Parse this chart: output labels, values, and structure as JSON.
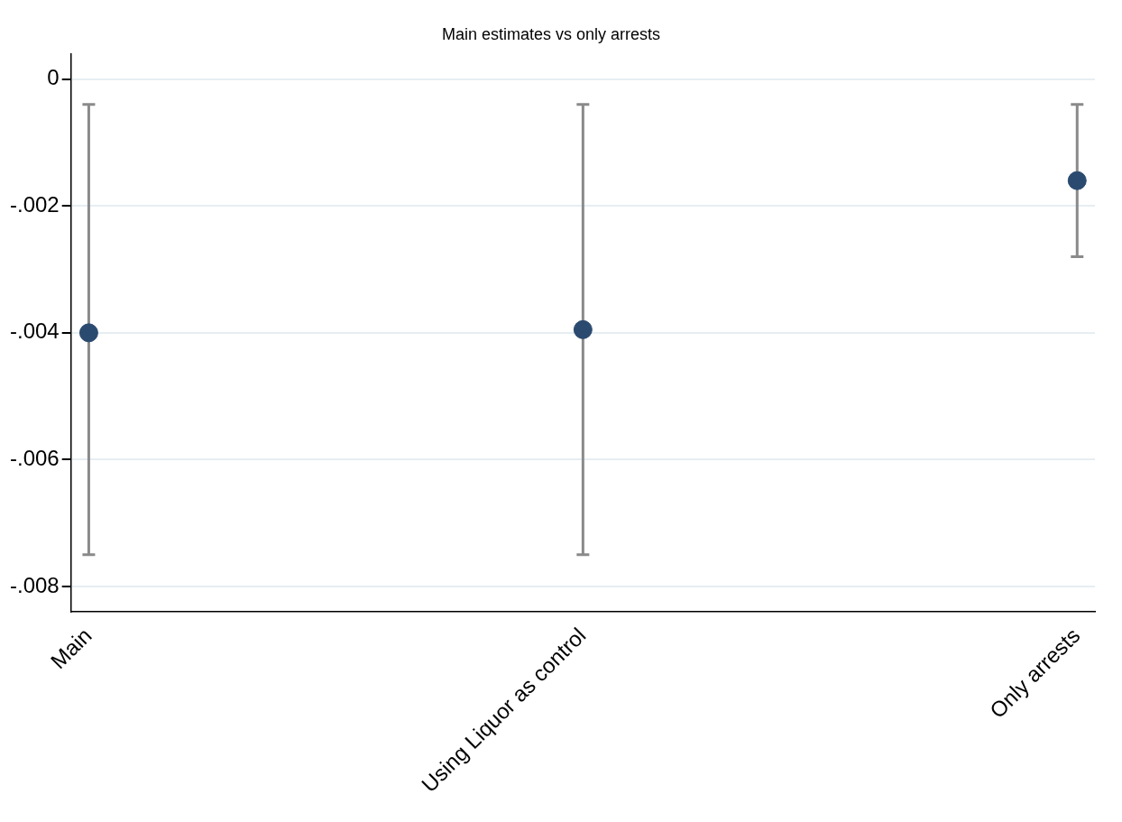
{
  "chart_data": {
    "type": "scatter",
    "title": "Main estimates vs only arrests",
    "categories": [
      "Main",
      "Using Liquor as control",
      "Only arrests"
    ],
    "series": [
      {
        "color": "#2b4a6f",
        "values": [
          -0.004,
          -0.00395,
          -0.0016
        ],
        "errors": [
          [
            -0.0075,
            -0.0004
          ],
          [
            -0.0075,
            -0.0004
          ],
          [
            -0.0028,
            -0.0004
          ]
        ]
      }
    ],
    "ylim": [
      -0.0084,
      0.0004
    ],
    "yticks": [
      {
        "value": 0,
        "label": "0"
      },
      {
        "value": -0.002,
        "label": "-.002"
      },
      {
        "value": -0.004,
        "label": "-.004"
      },
      {
        "value": -0.006,
        "label": "-.006"
      },
      {
        "value": -0.008,
        "label": "-.008"
      }
    ],
    "grid": "y",
    "marker": "circle",
    "legend": false
  }
}
